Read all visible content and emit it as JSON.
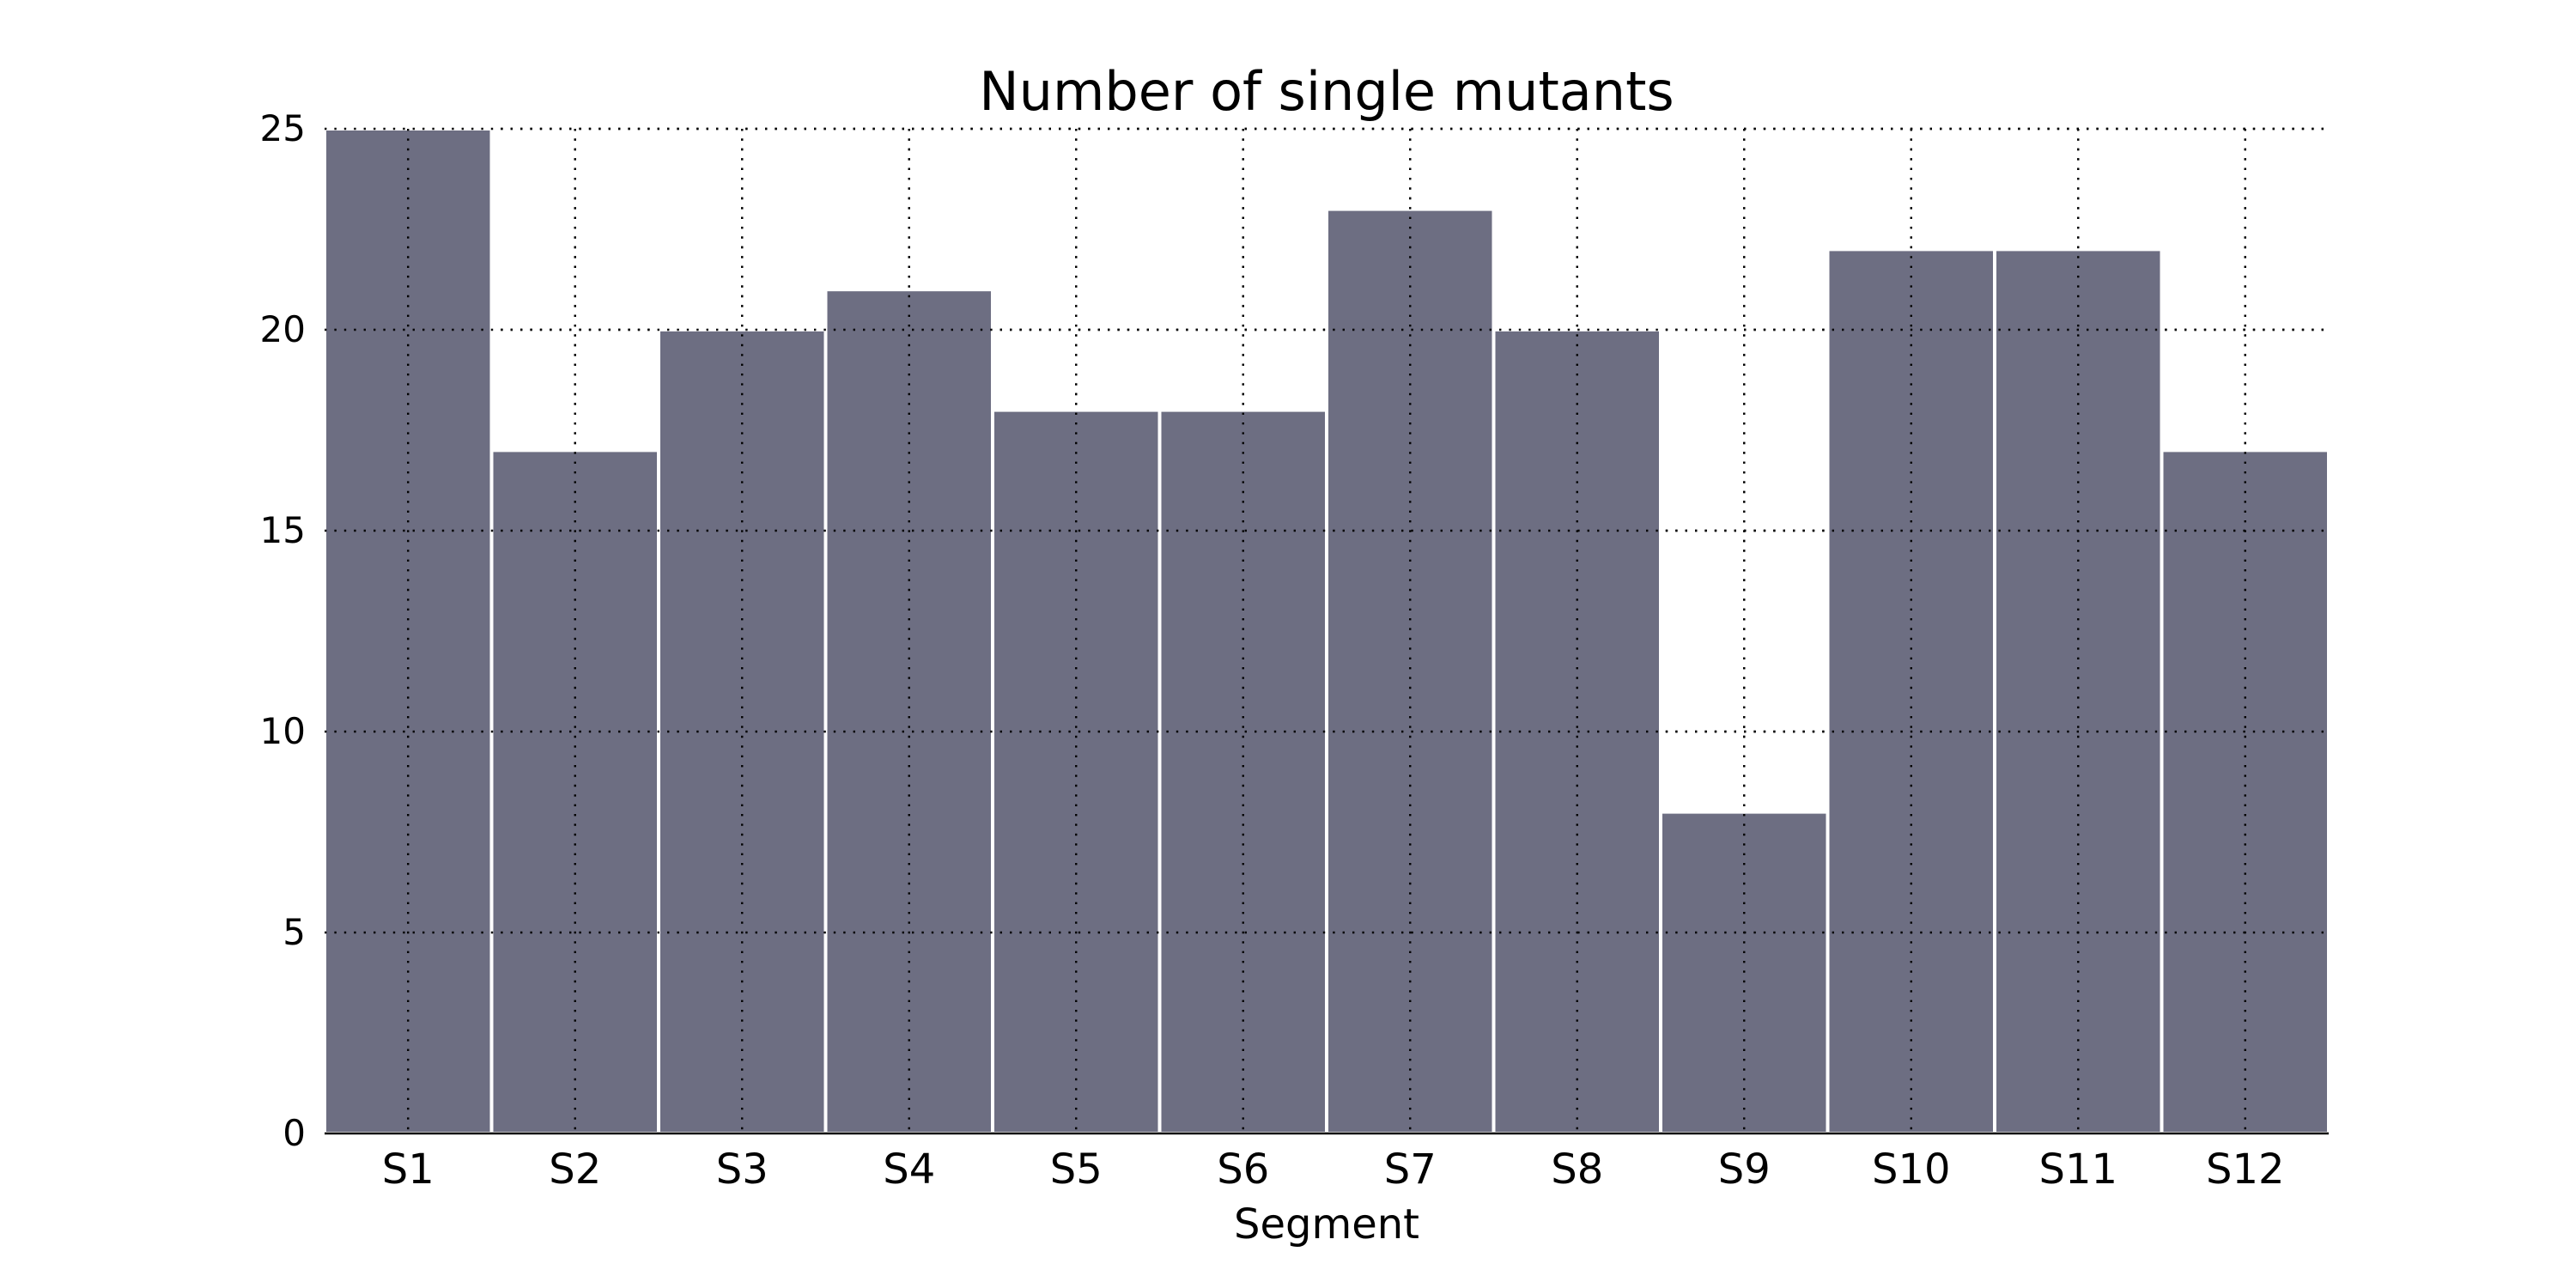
{
  "chart_data": {
    "type": "bar",
    "title": "Number of single mutants",
    "xlabel": "Segment",
    "ylabel": "",
    "categories": [
      "S1",
      "S2",
      "S3",
      "S4",
      "S5",
      "S6",
      "S7",
      "S8",
      "S9",
      "S10",
      "S11",
      "S12"
    ],
    "values": [
      25,
      17,
      20,
      21,
      18,
      18,
      23,
      20,
      8,
      22,
      22,
      17
    ],
    "ylim": [
      0,
      25
    ],
    "yticks": [
      0,
      5,
      10,
      15,
      20,
      25
    ],
    "grid": true,
    "legend": "none",
    "bar_color": "#6d6e82"
  }
}
